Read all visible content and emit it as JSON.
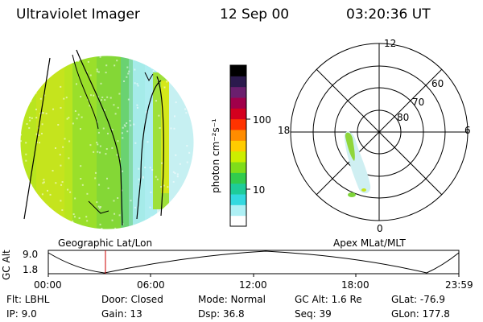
{
  "header": {
    "instrument": "Ultraviolet Imager",
    "date": "12 Sep 00",
    "time": "03:20:36 UT"
  },
  "panels": {
    "left_label": "Geographic Lat/Lon",
    "right_label": "Apex MLat/MLT"
  },
  "colorbar": {
    "unit_label": "photon cm⁻²s⁻¹",
    "ticks": [
      "100",
      "10"
    ],
    "colors": [
      "#000000",
      "#2b1a4d",
      "#6b1f6e",
      "#a0004a",
      "#d4001e",
      "#ff3300",
      "#ff8c00",
      "#ffcc00",
      "#ccee00",
      "#7fdd1a",
      "#32cc4d",
      "#1ecc99",
      "#33d9e0",
      "#aef0f5",
      "#ffffff"
    ]
  },
  "polar": {
    "mlt_labels": [
      "12",
      "18",
      "6",
      "0"
    ],
    "lat_labels": [
      "60",
      "70",
      "80"
    ]
  },
  "altitude_plot": {
    "y_axis_label": "GC Alt",
    "y_ticks": [
      "9.0",
      "1.8"
    ],
    "x_ticks": [
      "00:00",
      "06:00",
      "12:00",
      "18:00",
      "23:59"
    ],
    "marker_time": "03:20"
  },
  "info": {
    "flt": "Flt:  LBHL",
    "ip": "IP:  9.0",
    "door": "Door: Closed",
    "gain": "Gain: 13",
    "mode": "Mode:  Normal",
    "dsp": "Dsp:     36.8",
    "gc_alt": "GC Alt:  1.6 Re",
    "seq": "Seq:  39",
    "glat": "GLat:  -76.9",
    "glon": "GLon:  177.8"
  }
}
